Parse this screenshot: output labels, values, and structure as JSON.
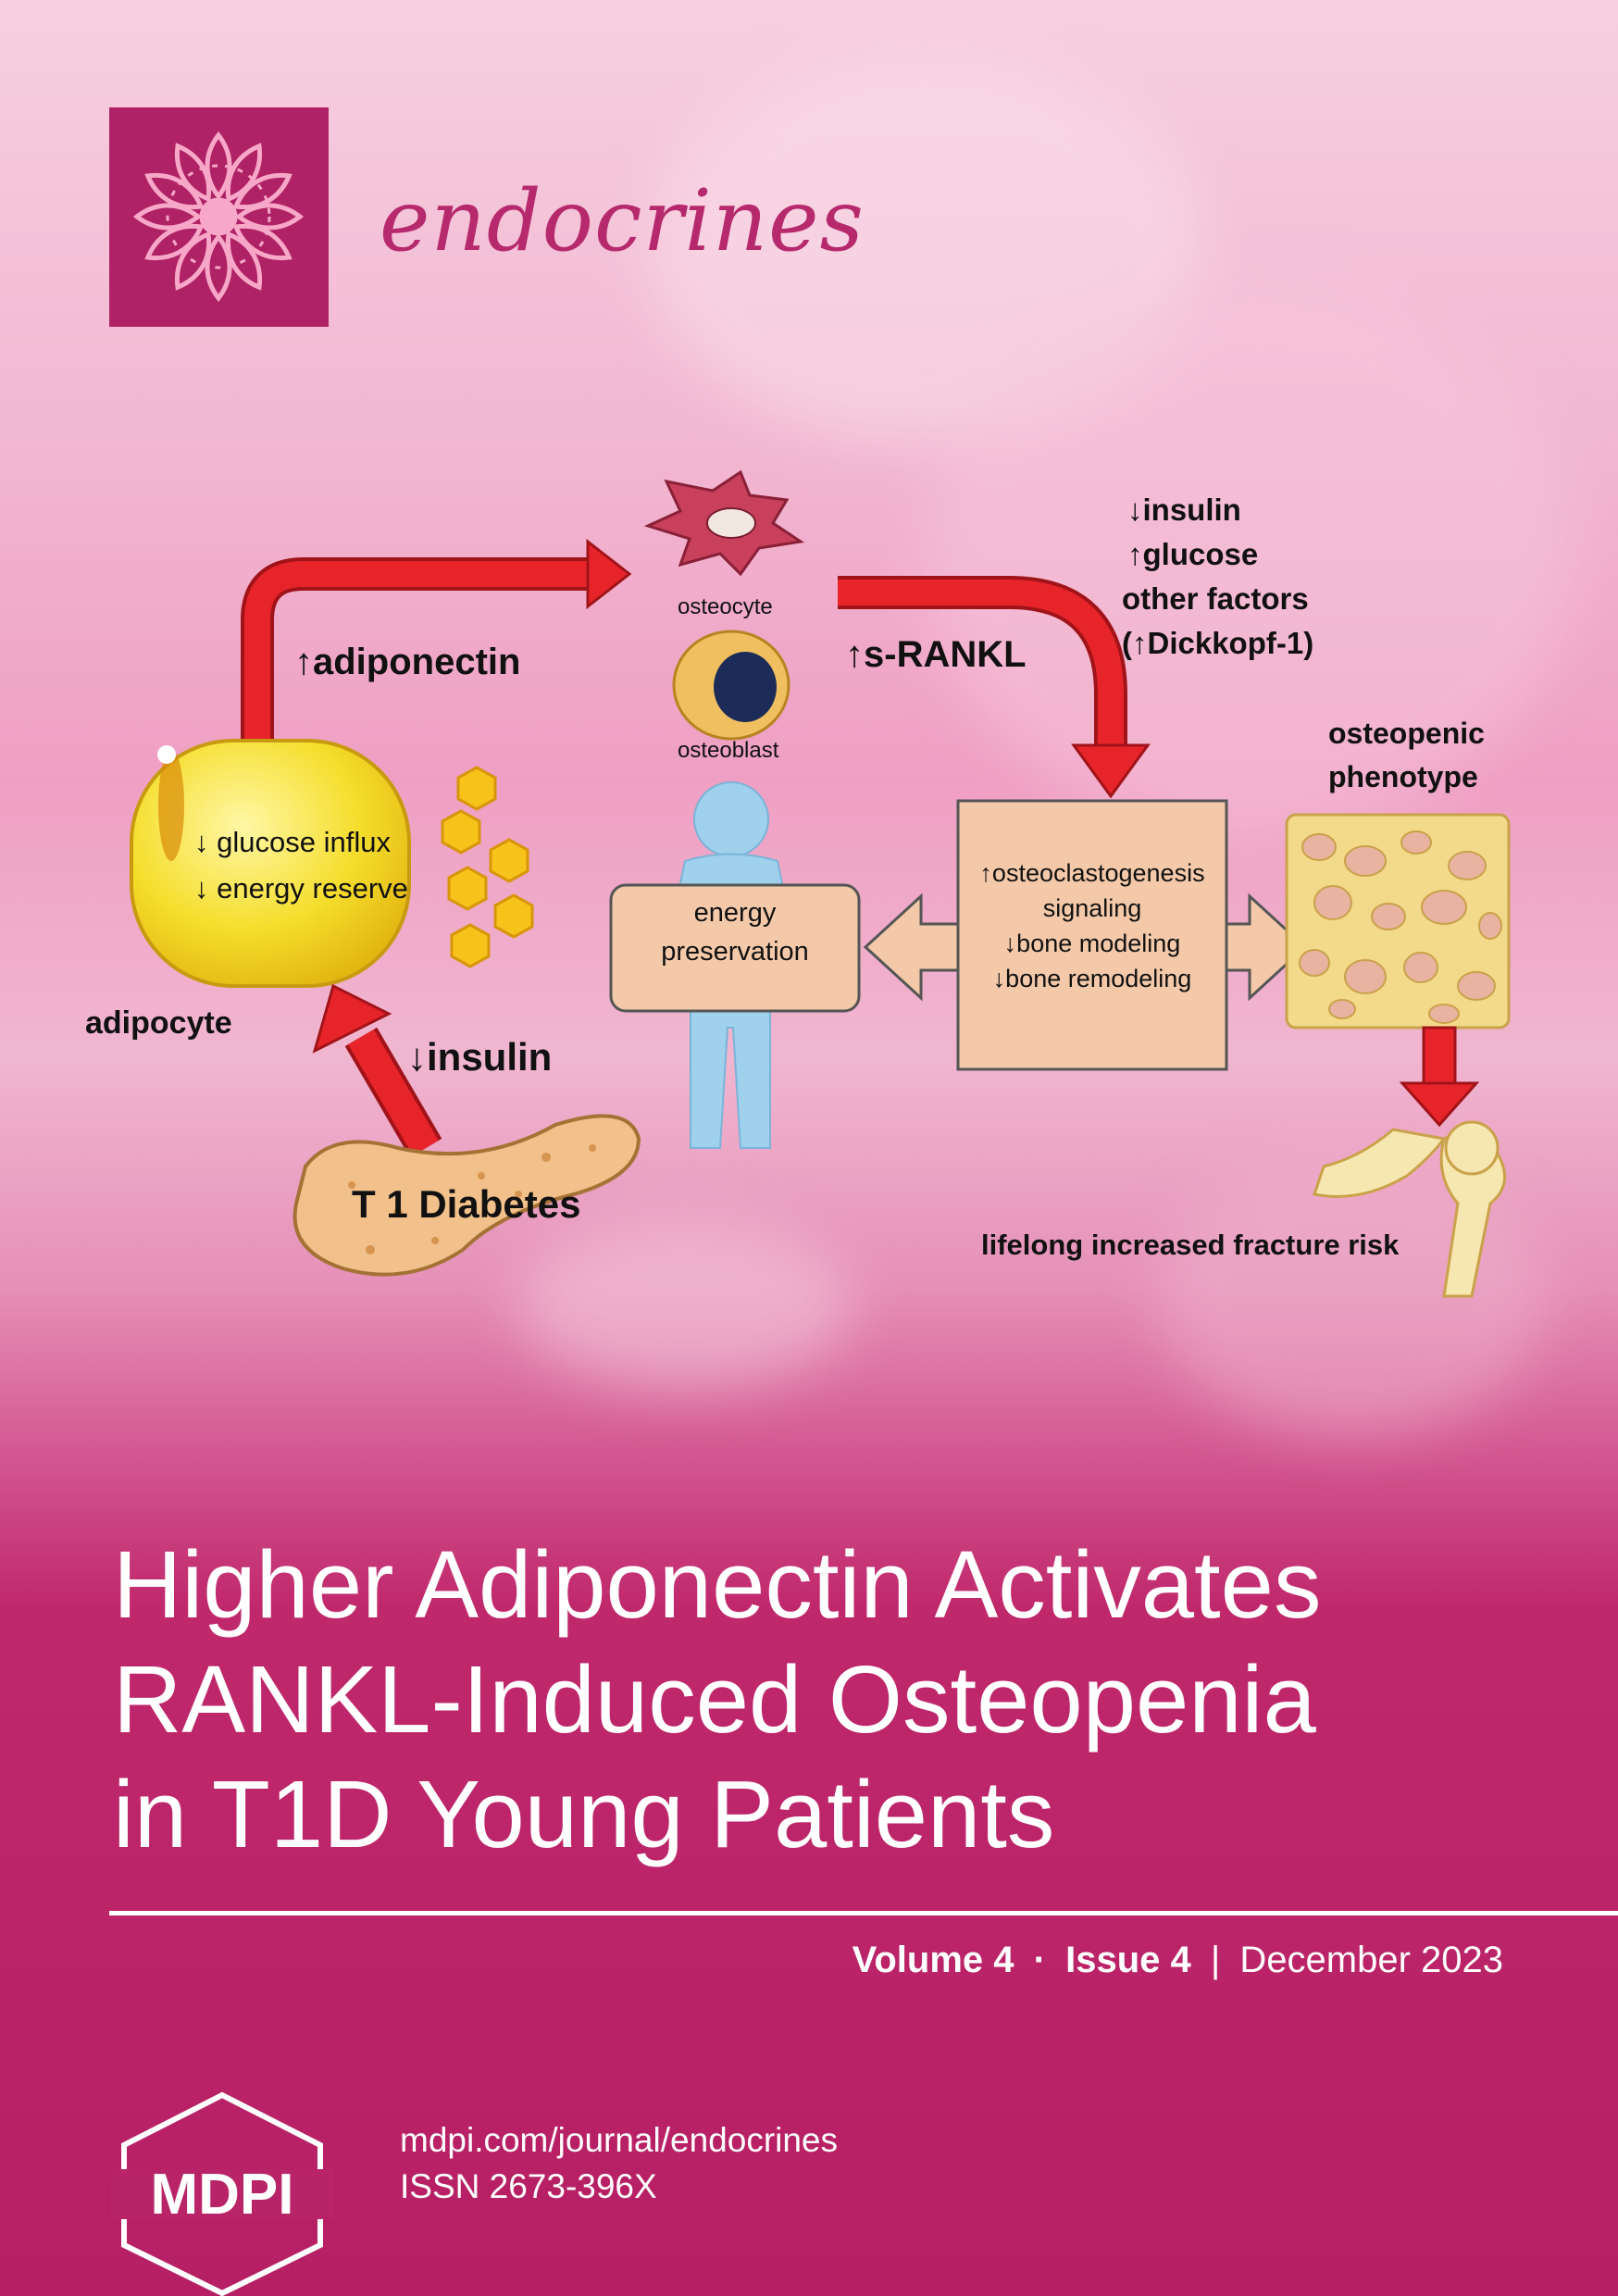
{
  "journal": {
    "name": "endocrines",
    "logo_icon": "mdpi-endocrines-rosette-icon"
  },
  "diagram": {
    "adipocyte_label": "adipocyte",
    "adipocyte_line1": "↓ glucose influx",
    "adipocyte_line2": "↓ energy reserve",
    "adiponectin": "↑adiponectin",
    "osteocyte": "osteocyte",
    "osteoblast": "osteoblast",
    "s_rankl": "↑s-RANKL",
    "factors": [
      "↓insulin",
      "↑glucose",
      "other factors",
      "(↑Dickkopf-1)"
    ],
    "osteopenic": [
      "osteopenic",
      "phenotype"
    ],
    "energy": [
      "energy",
      "preservation"
    ],
    "center_box": [
      "↑osteoclastogenesis",
      "signaling",
      "↓bone modeling",
      "↓bone remodeling"
    ],
    "insulin": "↓insulin",
    "t1d": "T 1 Diabetes",
    "fracture": "lifelong increased fracture risk"
  },
  "title_lines": [
    "Higher Adiponectin Activates",
    "RANKL-Induced Osteopenia",
    "in T1D Young Patients"
  ],
  "issue": {
    "volume": "Volume 4",
    "dot": "·",
    "issue": "Issue 4",
    "bar": "|",
    "date": "December 2023"
  },
  "publisher": {
    "logo_text": "MDPI",
    "url": "mdpi.com/journal/endocrines",
    "issn": "ISSN 2673-396X"
  },
  "colors": {
    "brand": "#b82467",
    "arrow": "#e8242b",
    "adipocyte": "#f7e03a",
    "box": "#f4c9a9"
  }
}
